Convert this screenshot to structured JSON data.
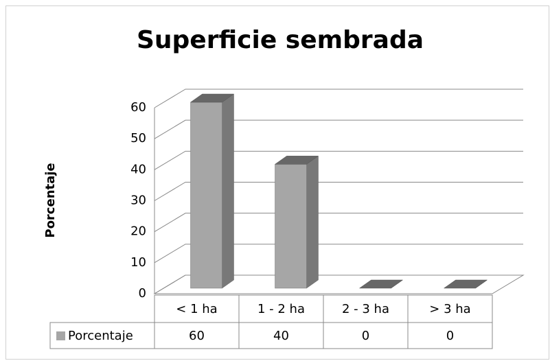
{
  "chart_data": {
    "type": "bar3d",
    "title": "Superficie sembrada",
    "y_label": "Porcentaje",
    "categories": [
      "< 1 ha",
      "1 - 2 ha",
      "2 - 3 ha",
      "> 3 ha"
    ],
    "series": [
      {
        "name": "Porcentaje",
        "color": "#a6a6a6",
        "values": [
          60,
          40,
          0,
          0
        ]
      }
    ],
    "ylim": [
      0,
      60
    ],
    "yticks": [
      0,
      10,
      20,
      30,
      40,
      50,
      60
    ],
    "grid": true
  }
}
